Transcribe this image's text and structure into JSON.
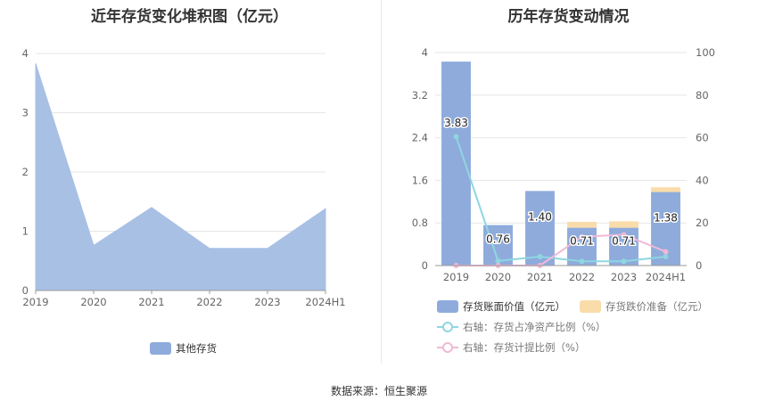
{
  "titles": {
    "left": "近年存货变化堆积图（亿元）",
    "right": "历年存货变动情况"
  },
  "source": "数据来源：恒生聚源",
  "colors": {
    "area": "#a9c0e5",
    "bar": "#8eabdc",
    "impairment": "#f9dcaa",
    "ratio_line": "#8fd6e0",
    "provision_line": "#f0b8d6"
  },
  "chart_data": [
    {
      "type": "area",
      "title": "近年存货变化堆积图（亿元）",
      "categories": [
        "2019",
        "2020",
        "2021",
        "2022",
        "2023",
        "2024H1"
      ],
      "series": [
        {
          "name": "其他存货",
          "values": [
            3.83,
            0.76,
            1.4,
            0.71,
            0.71,
            1.38
          ]
        }
      ],
      "yticks": [
        "0",
        "1",
        "2",
        "3",
        "4"
      ],
      "ylim": [
        0,
        4
      ],
      "grid": true,
      "legend": "bottom-center"
    },
    {
      "type": "bar",
      "title": "历年存货变动情况",
      "categories": [
        "2019",
        "2020",
        "2021",
        "2022",
        "2023",
        "2024H1"
      ],
      "series": [
        {
          "name": "存货账面价值（亿元）",
          "axis": "left",
          "kind": "bar",
          "values": [
            3.83,
            0.76,
            1.4,
            0.71,
            0.71,
            1.38
          ],
          "labels": [
            "3.83",
            "0.76",
            "1.40",
            "0.71",
            "0.71",
            "1.38"
          ]
        },
        {
          "name": "存货跌价准备（亿元）",
          "axis": "left",
          "kind": "bar-stacked",
          "values": [
            0,
            0,
            0,
            0.11,
            0.12,
            0.09
          ]
        },
        {
          "name": "右轴：存货占净资产比例（%）",
          "axis": "right",
          "kind": "line",
          "values": [
            60.5,
            2.2,
            4.2,
            2.0,
            2.0,
            4.2
          ]
        },
        {
          "name": "右轴：存货计提比例（%）",
          "axis": "right",
          "kind": "line",
          "values": [
            0,
            0,
            0,
            13.5,
            14.5,
            6.5
          ]
        }
      ],
      "yticks_left": [
        "0",
        "0.8",
        "1.6",
        "2.4",
        "3.2",
        "4"
      ],
      "yticks_right": [
        "0",
        "20",
        "40",
        "60",
        "80",
        "100"
      ],
      "ylim_left": [
        0,
        4
      ],
      "ylim_right": [
        0,
        100
      ],
      "grid": true,
      "legend": "bottom"
    }
  ]
}
